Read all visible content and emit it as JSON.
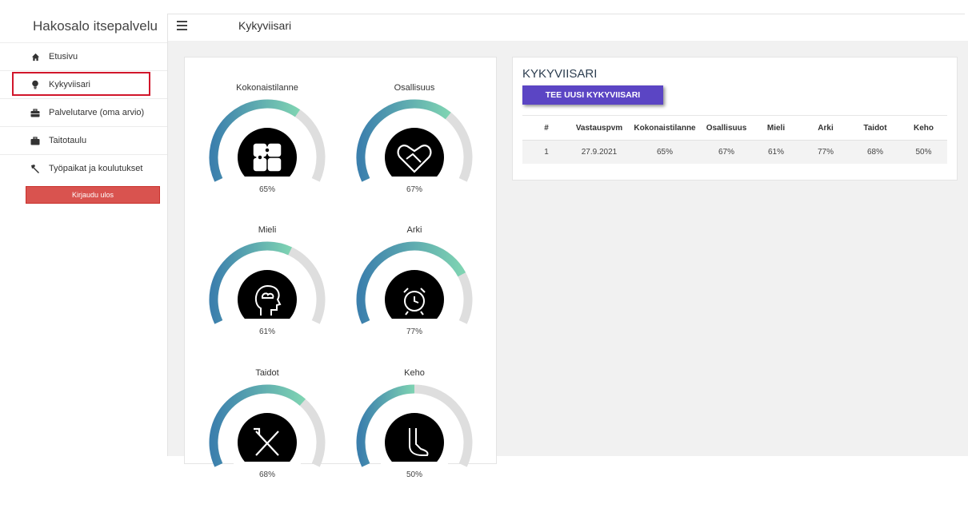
{
  "app": {
    "brand": "Hakosalo itsepalvelu"
  },
  "sidebar": {
    "items": [
      {
        "label": "Etusivu",
        "icon": "home-icon"
      },
      {
        "label": "Kykyviisari",
        "icon": "lightbulb-icon",
        "active": true
      },
      {
        "label": "Palvelutarve (oma arvio)",
        "icon": "briefcase-icon"
      },
      {
        "label": "Taitotaulu",
        "icon": "briefcase-icon"
      },
      {
        "label": "Työpaikat ja koulutukset",
        "icon": "hammer-icon"
      }
    ],
    "logout_label": "Kirjaudu ulos"
  },
  "header": {
    "title": "Kykyviisari"
  },
  "gauges": [
    {
      "title": "Kokonaistilanne",
      "value": "65%",
      "percent": 65,
      "icon": "puzzle-icon"
    },
    {
      "title": "Osallisuus",
      "value": "67%",
      "percent": 67,
      "icon": "heart-handshake-icon"
    },
    {
      "title": "Mieli",
      "value": "61%",
      "percent": 61,
      "icon": "head-cloud-icon"
    },
    {
      "title": "Arki",
      "value": "77%",
      "percent": 77,
      "icon": "alarm-clock-icon"
    },
    {
      "title": "Taidot",
      "value": "68%",
      "percent": 68,
      "icon": "tools-icon"
    },
    {
      "title": "Keho",
      "value": "50%",
      "percent": 50,
      "icon": "foot-icon"
    }
  ],
  "results": {
    "title": "KYKYVIISARI",
    "new_button": "TEE UUSI KYKYVIISARI",
    "columns": [
      "#",
      "Vastauspvm",
      "Kokonaistilanne",
      "Osallisuus",
      "Mieli",
      "Arki",
      "Taidot",
      "Keho"
    ],
    "rows": [
      [
        "1",
        "27.9.2021",
        "65%",
        "67%",
        "61%",
        "77%",
        "68%",
        "50%"
      ]
    ]
  },
  "colors": {
    "arc_start": "#3c80ad",
    "arc_end": "#7ed3b2",
    "arc_track": "#dedede",
    "logout": "#d9534f",
    "primary_button": "#5b45c4",
    "active_outline": "#d1162b"
  }
}
